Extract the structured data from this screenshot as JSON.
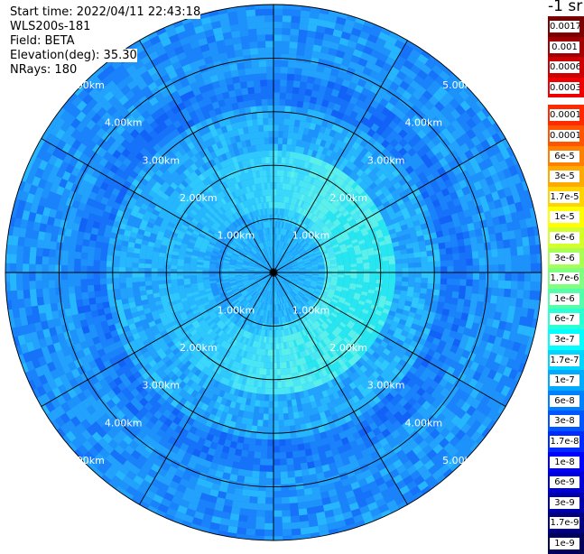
{
  "header": {
    "start_time": "Start time: 2022/04/11 22:43:18",
    "instrument": "WLS200s-181",
    "field": "Field: BETA",
    "elevation": "Elevation(deg): 35.30",
    "nrays": "NRays: 180"
  },
  "colorbar": {
    "unit_label": "-1 sr",
    "labels": [
      "0.0017",
      "0.001",
      "0.0006",
      "0.0003",
      "0.00017",
      "0.0001",
      "6e-5",
      "3e-5",
      "1.7e-5",
      "1e-5",
      "6e-6",
      "3e-6",
      "1.7e-6",
      "1e-6",
      "6e-7",
      "3e-7",
      "1.7e-7",
      "1e-7",
      "6e-8",
      "3e-8",
      "1.7e-8",
      "1e-8",
      "6e-9",
      "3e-9",
      "1.7e-9",
      "1e-9"
    ],
    "colors": [
      "#7a0000",
      "#a00000",
      "#cc0000",
      "#ee0000",
      "#ff2a00",
      "#ff5500",
      "#ff8000",
      "#ffaa00",
      "#ffd400",
      "#ffff00",
      "#d4ff2b",
      "#aaff55",
      "#80ff80",
      "#55ffaa",
      "#2bffd4",
      "#00ffff",
      "#00d4ff",
      "#00aaff",
      "#0080ff",
      "#0055ff",
      "#002bff",
      "#0000ff",
      "#0000d4",
      "#0000aa",
      "#000080",
      "#00005a"
    ]
  },
  "range_rings": {
    "labels": [
      "1.00km",
      "2.00km",
      "3.00km",
      "4.00km",
      "5.00km"
    ]
  },
  "plot": {
    "num_rays": 180,
    "max_range_km": 5.0,
    "spoke_count": 12
  }
}
